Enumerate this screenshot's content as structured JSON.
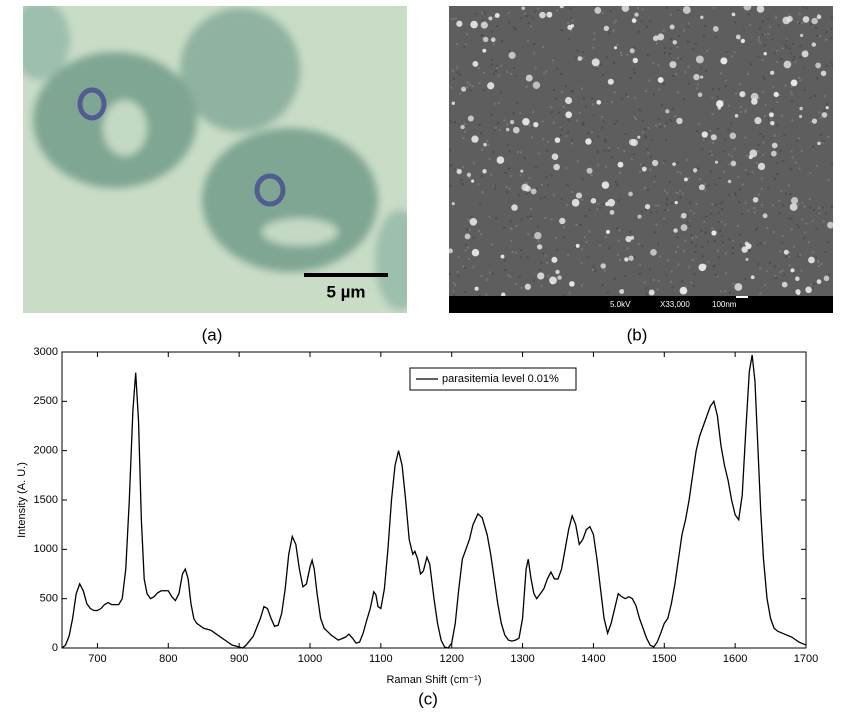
{
  "panels": {
    "a": {
      "label": "(a)",
      "scale_bar": "5 µm"
    },
    "b": {
      "label": "(b)",
      "info": [
        "5.0kV",
        "X33,000",
        "100nm"
      ]
    }
  },
  "chart_data": {
    "type": "line",
    "panel_label": "(c)",
    "xlabel": "Raman Shift (cm⁻¹)",
    "ylabel": "Intensity (A. U.)",
    "xlim": [
      650,
      1700
    ],
    "ylim": [
      0,
      3000
    ],
    "xticks": [
      700,
      800,
      900,
      1000,
      1100,
      1200,
      1300,
      1400,
      1500,
      1600,
      1700
    ],
    "yticks": [
      0,
      500,
      1000,
      1500,
      2000,
      2500,
      3000
    ],
    "legend": "top",
    "x": [
      650,
      655,
      660,
      665,
      670,
      675,
      680,
      685,
      690,
      695,
      700,
      705,
      710,
      715,
      720,
      725,
      730,
      735,
      740,
      745,
      750,
      754,
      758,
      762,
      766,
      770,
      775,
      780,
      785,
      790,
      795,
      800,
      805,
      810,
      815,
      820,
      824,
      828,
      832,
      836,
      840,
      850,
      860,
      870,
      880,
      890,
      900,
      905,
      910,
      920,
      930,
      935,
      940,
      945,
      950,
      955,
      960,
      965,
      970,
      975,
      980,
      985,
      990,
      995,
      1000,
      1003,
      1006,
      1010,
      1015,
      1020,
      1030,
      1040,
      1050,
      1055,
      1060,
      1065,
      1070,
      1075,
      1080,
      1085,
      1090,
      1093,
      1096,
      1100,
      1105,
      1110,
      1115,
      1120,
      1125,
      1130,
      1135,
      1140,
      1145,
      1148,
      1152,
      1156,
      1160,
      1165,
      1169,
      1175,
      1180,
      1185,
      1190,
      1195,
      1200,
      1205,
      1210,
      1215,
      1220,
      1225,
      1230,
      1237,
      1243,
      1250,
      1255,
      1260,
      1265,
      1270,
      1275,
      1280,
      1285,
      1290,
      1295,
      1300,
      1305,
      1308,
      1312,
      1316,
      1320,
      1325,
      1330,
      1335,
      1340,
      1345,
      1350,
      1355,
      1360,
      1365,
      1370,
      1375,
      1380,
      1385,
      1390,
      1395,
      1400,
      1405,
      1410,
      1415,
      1420,
      1425,
      1430,
      1435,
      1440,
      1445,
      1450,
      1455,
      1460,
      1465,
      1470,
      1475,
      1480,
      1485,
      1490,
      1495,
      1500,
      1505,
      1510,
      1515,
      1520,
      1525,
      1530,
      1535,
      1540,
      1545,
      1550,
      1555,
      1560,
      1565,
      1570,
      1575,
      1580,
      1585,
      1590,
      1595,
      1600,
      1605,
      1610,
      1615,
      1620,
      1624,
      1628,
      1632,
      1636,
      1640,
      1645,
      1650,
      1655,
      1660,
      1670,
      1680,
      1690,
      1700
    ],
    "series": [
      {
        "name": "parasitemia level 0.01%",
        "color": "#000000",
        "values": [
          0,
          30,
          120,
          300,
          550,
          650,
          580,
          450,
          400,
          380,
          380,
          400,
          440,
          460,
          440,
          440,
          440,
          500,
          800,
          1500,
          2400,
          2790,
          2300,
          1300,
          700,
          550,
          500,
          520,
          560,
          580,
          580,
          580,
          520,
          480,
          550,
          750,
          800,
          700,
          450,
          300,
          250,
          200,
          180,
          130,
          80,
          30,
          10,
          0,
          30,
          120,
          300,
          420,
          400,
          300,
          220,
          230,
          350,
          600,
          950,
          1130,
          1050,
          800,
          620,
          650,
          820,
          890,
          800,
          550,
          300,
          200,
          130,
          80,
          110,
          140,
          100,
          50,
          60,
          150,
          280,
          400,
          570,
          540,
          420,
          400,
          600,
          1000,
          1500,
          1850,
          2000,
          1850,
          1500,
          1100,
          950,
          980,
          900,
          750,
          780,
          920,
          850,
          500,
          250,
          80,
          10,
          0,
          50,
          250,
          600,
          900,
          1000,
          1100,
          1250,
          1360,
          1320,
          1150,
          950,
          700,
          450,
          250,
          130,
          80,
          70,
          80,
          100,
          300,
          800,
          900,
          700,
          550,
          500,
          550,
          600,
          700,
          770,
          700,
          700,
          800,
          1000,
          1200,
          1340,
          1250,
          1050,
          1100,
          1200,
          1230,
          1150,
          900,
          600,
          300,
          150,
          250,
          400,
          550,
          520,
          500,
          520,
          500,
          430,
          300,
          200,
          100,
          30,
          10,
          60,
          150,
          250,
          300,
          450,
          650,
          900,
          1150,
          1300,
          1500,
          1750,
          2000,
          2150,
          2250,
          2350,
          2450,
          2500,
          2350,
          2050,
          1850,
          1700,
          1500,
          1350,
          1300,
          1550,
          2200,
          2800,
          2970,
          2700,
          2050,
          1400,
          900,
          500,
          300,
          200,
          170,
          140,
          110,
          60,
          30
        ]
      }
    ]
  }
}
